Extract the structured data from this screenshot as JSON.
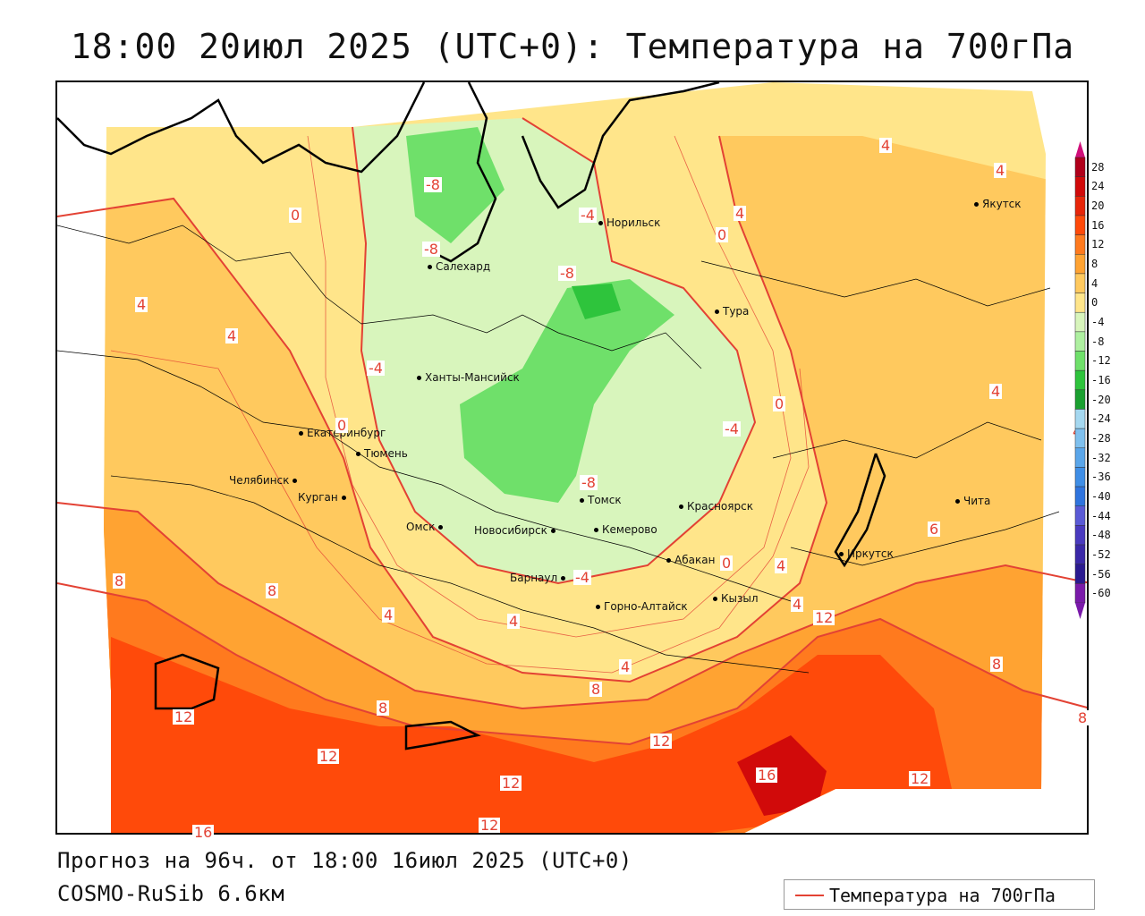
{
  "title": "18:00 20июл 2025 (UTC+0): Температура на 700гПа",
  "forecast_line": "Прогноз на 96ч. от 18:00 16июл 2025 (UTC+0)",
  "model_line": "COSMO-RuSib 6.6км",
  "legend": {
    "label": "Температура на 700гПа",
    "color": "#e34234"
  },
  "colorbar": {
    "ticks": [
      "28",
      "24",
      "20",
      "16",
      "12",
      "8",
      "4",
      "0",
      "-4",
      "-8",
      "-12",
      "-16",
      "-20",
      "-24",
      "-28",
      "-32",
      "-36",
      "-40",
      "-44",
      "-48",
      "-52",
      "-56",
      "-60"
    ],
    "colors": [
      "#b0001a",
      "#d10a0a",
      "#e8260a",
      "#ff4a0a",
      "#ff7a1e",
      "#ffa332",
      "#ffc95e",
      "#ffe58a",
      "#d8f5bc",
      "#aef0a0",
      "#6fe06a",
      "#2ec43c",
      "#1aa030",
      "#a5d8f0",
      "#7fc0ee",
      "#5aa6ea",
      "#3f8ee6",
      "#2f74de",
      "#5a5ad6",
      "#4a3abf",
      "#3a28a8",
      "#2a1a90",
      "#7a1aaa"
    ]
  },
  "cities": [
    {
      "name": "Норильск"
    },
    {
      "name": "Салехард"
    },
    {
      "name": "Тура"
    },
    {
      "name": "Якутск"
    },
    {
      "name": "Ханты-Мансийск"
    },
    {
      "name": "Екатеринбург"
    },
    {
      "name": "Тюмень"
    },
    {
      "name": "Челябинск"
    },
    {
      "name": "Курган"
    },
    {
      "name": "Омск"
    },
    {
      "name": "Новосибирск"
    },
    {
      "name": "Томск"
    },
    {
      "name": "Кемерово"
    },
    {
      "name": "Красноярск"
    },
    {
      "name": "Абакан"
    },
    {
      "name": "Барнаул"
    },
    {
      "name": "Горно-Алтайск"
    },
    {
      "name": "Кызыл"
    },
    {
      "name": "Иркутск"
    },
    {
      "name": "Чита"
    }
  ],
  "isotherm_labels": [
    "-8",
    "-8",
    "-4",
    "-8",
    "4",
    "0",
    "4",
    "4",
    "0",
    "4",
    "4",
    "-4",
    "0",
    "-4",
    "-8",
    "-4",
    "0",
    "4",
    "0",
    "4",
    "4",
    "4",
    "4",
    "8",
    "8",
    "4",
    "4",
    "8",
    "12",
    "8",
    "6",
    "8",
    "12",
    "8",
    "8",
    "12",
    "12",
    "16",
    "12",
    "12",
    "12",
    "16",
    "8"
  ]
}
